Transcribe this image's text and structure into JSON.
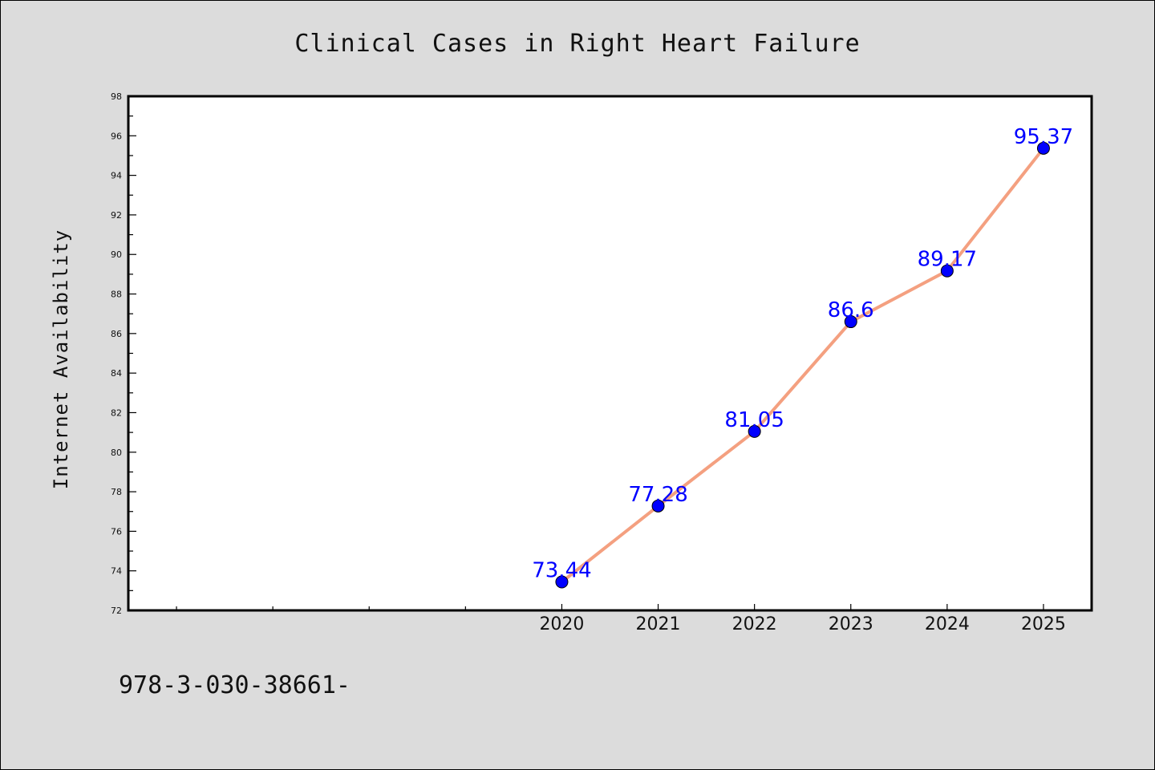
{
  "colors": {
    "background": "#dcdcdc",
    "plot_background": "#ffffff",
    "line": "#f4a080",
    "marker": "#0000ff",
    "data_label": "#0000ff",
    "axis": "#000000"
  },
  "footer": {
    "text": "978-3-030-38661-"
  },
  "chart_data": {
    "type": "line",
    "title": "Clinical Cases in Right Heart Failure",
    "xlabel": "",
    "ylabel": "Internet Availability",
    "ylim": [
      72,
      98
    ],
    "yticks": [
      72,
      74,
      76,
      78,
      80,
      82,
      84,
      86,
      88,
      90,
      92,
      94,
      96,
      98
    ],
    "yminor_step": 1,
    "xlim": [
      2015.5,
      2025.5
    ],
    "xticks_major": [
      2020,
      2021,
      2022,
      2023,
      2024,
      2025
    ],
    "xticks_minor": [
      2016,
      2017,
      2018,
      2019
    ],
    "x": [
      2020,
      2021,
      2022,
      2023,
      2024,
      2025
    ],
    "series": [
      {
        "values": [
          73.44,
          77.28,
          81.05,
          86.6,
          89.17,
          95.37
        ],
        "labels": [
          "73.44",
          "77.28",
          "81.05",
          "86.6",
          "89.17",
          "95.37"
        ]
      }
    ],
    "grid": false,
    "legend": "none"
  }
}
